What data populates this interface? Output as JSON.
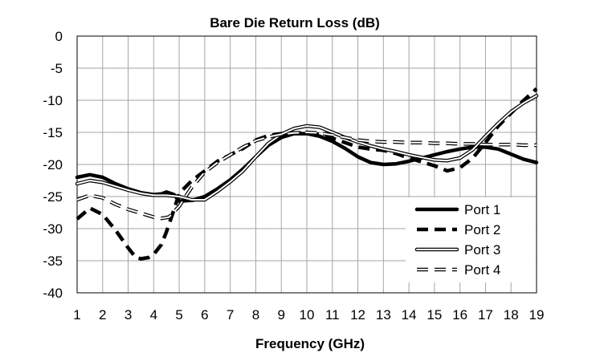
{
  "chart_data": {
    "type": "line",
    "title": "Bare Die Return Loss (dB)",
    "xlabel": "Frequency (GHz)",
    "ylabel": "",
    "xlim": [
      1,
      19
    ],
    "ylim": [
      -40,
      0
    ],
    "x_ticks": [
      1,
      2,
      3,
      4,
      5,
      6,
      7,
      8,
      9,
      10,
      11,
      12,
      13,
      14,
      15,
      16,
      17,
      18,
      19
    ],
    "y_ticks": [
      0,
      -5,
      -10,
      -15,
      -20,
      -25,
      -30,
      -35,
      -40
    ],
    "grid": true,
    "legend_position": "bottom-right",
    "series": [
      {
        "name": "Port 1",
        "style": "thick-solid",
        "color": "#000000",
        "x": [
          1,
          1.5,
          2,
          2.5,
          3,
          3.5,
          4,
          4.3,
          4.5,
          4.8,
          5,
          5.5,
          6,
          6.5,
          7,
          7.5,
          8,
          8.5,
          9,
          9.5,
          10,
          10.5,
          11,
          11.5,
          12,
          12.5,
          13,
          13.5,
          14,
          14.5,
          15,
          15.5,
          16,
          16.5,
          17,
          17.5,
          18,
          18.5,
          19
        ],
        "y": [
          -22,
          -21.6,
          -22,
          -23,
          -23.8,
          -24.4,
          -24.7,
          -24.6,
          -24.3,
          -24.7,
          -25.7,
          -25.6,
          -25,
          -23.8,
          -22.4,
          -20.7,
          -18.8,
          -17,
          -15.8,
          -15.2,
          -15.2,
          -15.6,
          -16.4,
          -17.5,
          -18.8,
          -19.7,
          -20,
          -19.9,
          -19.5,
          -19,
          -18.5,
          -18,
          -17.6,
          -17.3,
          -17.3,
          -17.6,
          -18.4,
          -19.2,
          -19.7
        ]
      },
      {
        "name": "Port 2",
        "style": "thick-dash",
        "color": "#000000",
        "x": [
          1,
          1.5,
          2,
          2.5,
          3,
          3.3,
          3.5,
          3.8,
          4,
          4.3,
          4.5,
          4.8,
          5,
          5.5,
          6,
          6.5,
          7,
          7.5,
          8,
          8.5,
          9,
          9.5,
          10,
          10.5,
          11,
          11.5,
          12,
          12.5,
          13,
          13.5,
          14,
          14.5,
          15,
          15.5,
          16,
          16.5,
          17,
          17.5,
          18,
          18.5,
          19
        ],
        "y": [
          -28.5,
          -26.8,
          -27.8,
          -30.2,
          -33,
          -34.5,
          -34.7,
          -34.5,
          -34,
          -32.5,
          -30.5,
          -27,
          -24.5,
          -22.5,
          -21,
          -19.5,
          -18.5,
          -17.5,
          -16.2,
          -15.5,
          -15.2,
          -15.1,
          -15.1,
          -15.3,
          -15.9,
          -16.6,
          -17.3,
          -17.6,
          -17.8,
          -18.3,
          -19,
          -19.6,
          -20.2,
          -21,
          -20.5,
          -19,
          -16.6,
          -14,
          -12,
          -10,
          -8.2
        ]
      },
      {
        "name": "Port 3",
        "style": "double-line",
        "color": "#000000",
        "x": [
          1,
          1.5,
          2,
          2.5,
          3,
          3.5,
          4,
          4.5,
          5,
          5.5,
          6,
          6.5,
          7,
          7.5,
          8,
          8.5,
          9,
          9.5,
          10,
          10.5,
          11,
          11.5,
          12,
          12.5,
          13,
          13.5,
          14,
          14.5,
          15,
          15.5,
          16,
          16.5,
          17,
          17.5,
          18,
          18.5,
          19
        ],
        "y": [
          -23,
          -22.5,
          -22.8,
          -23.4,
          -24,
          -24.5,
          -24.8,
          -24.8,
          -25,
          -25.5,
          -25.5,
          -24.2,
          -22.7,
          -21,
          -18.8,
          -16.7,
          -15.3,
          -14.4,
          -14,
          -14.2,
          -15,
          -15.8,
          -16.5,
          -17.1,
          -17.6,
          -18,
          -18.5,
          -18.9,
          -19.3,
          -19.4,
          -19,
          -17.7,
          -15.6,
          -13.6,
          -11.8,
          -10.4,
          -9.3
        ]
      },
      {
        "name": "Port 4",
        "style": "double-dash",
        "color": "#000000",
        "x": [
          1,
          1.5,
          2,
          2.5,
          3,
          3.5,
          4,
          4.3,
          4.6,
          5,
          5.5,
          6,
          6.5,
          7,
          7.5,
          8,
          8.5,
          9,
          9.5,
          10,
          10.5,
          11,
          11.5,
          12,
          12.5,
          13,
          13.5,
          14,
          14.5,
          15,
          15.5,
          16,
          16.5,
          17,
          17.5,
          18,
          18.5,
          19
        ],
        "y": [
          -25.5,
          -24.8,
          -25.2,
          -26.2,
          -27,
          -27.6,
          -28.2,
          -28.4,
          -28.2,
          -26.5,
          -23.5,
          -21.2,
          -19.7,
          -18.5,
          -17.3,
          -16.3,
          -15.7,
          -15.3,
          -15.1,
          -15,
          -15.1,
          -15.4,
          -15.8,
          -16.2,
          -16.4,
          -16.5,
          -16.5,
          -16.6,
          -16.6,
          -16.7,
          -16.7,
          -16.8,
          -16.8,
          -16.9,
          -16.9,
          -16.9,
          -17,
          -17
        ]
      }
    ]
  }
}
